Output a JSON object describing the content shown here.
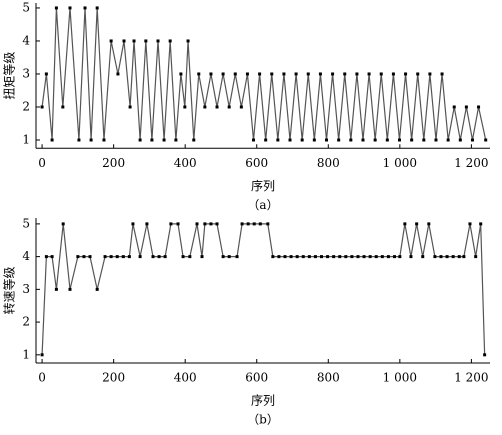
{
  "chart_data": [
    {
      "type": "line",
      "caption": "（a）",
      "x_label": "序列",
      "y_label": "扭矩等级",
      "color": "#555555",
      "x": [
        0,
        12,
        28,
        40,
        58,
        78,
        103,
        120,
        137,
        154,
        173,
        193,
        212,
        229,
        246,
        257,
        274,
        290,
        307,
        324,
        341,
        358,
        374,
        388,
        399,
        408,
        424,
        438,
        455,
        472,
        489,
        506,
        523,
        540,
        557,
        574,
        591,
        608,
        625,
        642,
        659,
        676,
        693,
        710,
        727,
        744,
        761,
        778,
        795,
        812,
        829,
        846,
        863,
        880,
        897,
        914,
        931,
        948,
        965,
        982,
        999,
        1016,
        1033,
        1050,
        1067,
        1084,
        1101,
        1118,
        1135,
        1152,
        1169,
        1186,
        1203,
        1220,
        1240
      ],
      "values": [
        2,
        3,
        1,
        5,
        2,
        5,
        1,
        5,
        1,
        5,
        1,
        4,
        3,
        4,
        2,
        4,
        1,
        4,
        1,
        4,
        1,
        4,
        1,
        3,
        2,
        4,
        1,
        3,
        2,
        3,
        2,
        3,
        2,
        3,
        2,
        3,
        1,
        3,
        1,
        3,
        1,
        3,
        1,
        3,
        1,
        3,
        1,
        3,
        1,
        3,
        1,
        3,
        1,
        3,
        1,
        3,
        1,
        3,
        1,
        3,
        1,
        3,
        1,
        3,
        1,
        3,
        1,
        3,
        1,
        2,
        1,
        2,
        1,
        2,
        1
      ],
      "xlim": [
        -17,
        1252
      ],
      "xticks": [
        0,
        200,
        400,
        600,
        800,
        {
          "value": 1000,
          "label": "1 000"
        },
        {
          "value": 1200,
          "label": "1 200"
        }
      ],
      "ylim": [
        0.75,
        5.15
      ],
      "yticks": [
        1,
        2,
        3,
        4,
        5
      ]
    },
    {
      "type": "line",
      "caption": "（b）",
      "x_label": "序列",
      "y_label": "转速等级",
      "color": "#555555",
      "x": [
        0,
        12,
        28,
        40,
        59,
        78,
        100,
        117,
        134,
        154,
        176,
        193,
        210,
        227,
        244,
        254,
        274,
        293,
        310,
        327,
        344,
        360,
        380,
        394,
        413,
        433,
        447,
        455,
        472,
        489,
        506,
        523,
        545,
        559,
        576,
        593,
        610,
        631,
        645,
        662,
        679,
        696,
        713,
        730,
        747,
        764,
        781,
        798,
        815,
        832,
        849,
        866,
        883,
        900,
        917,
        934,
        951,
        968,
        985,
        1000,
        1014,
        1031,
        1047,
        1064,
        1081,
        1098,
        1115,
        1132,
        1149,
        1166,
        1179,
        1196,
        1212,
        1226,
        1237
      ],
      "values": [
        1,
        4,
        4,
        3,
        5,
        3,
        4,
        4,
        4,
        3,
        4,
        4,
        4,
        4,
        4,
        5,
        4,
        5,
        4,
        4,
        4,
        5,
        5,
        4,
        4,
        5,
        4,
        5,
        5,
        5,
        4,
        4,
        4,
        5,
        5,
        5,
        5,
        5,
        4,
        4,
        4,
        4,
        4,
        4,
        4,
        4,
        4,
        4,
        4,
        4,
        4,
        4,
        4,
        4,
        4,
        4,
        4,
        4,
        4,
        4,
        5,
        4,
        5,
        4,
        5,
        4,
        4,
        4,
        4,
        4,
        4,
        5,
        4,
        5,
        1
      ],
      "xlim": [
        -17,
        1252
      ],
      "xticks": [
        0,
        200,
        400,
        600,
        800,
        {
          "value": 1000,
          "label": "1 000"
        },
        {
          "value": 1200,
          "label": "1 200"
        }
      ],
      "ylim": [
        0.75,
        5.18
      ],
      "yticks": [
        1,
        2,
        3,
        4,
        5
      ]
    }
  ]
}
